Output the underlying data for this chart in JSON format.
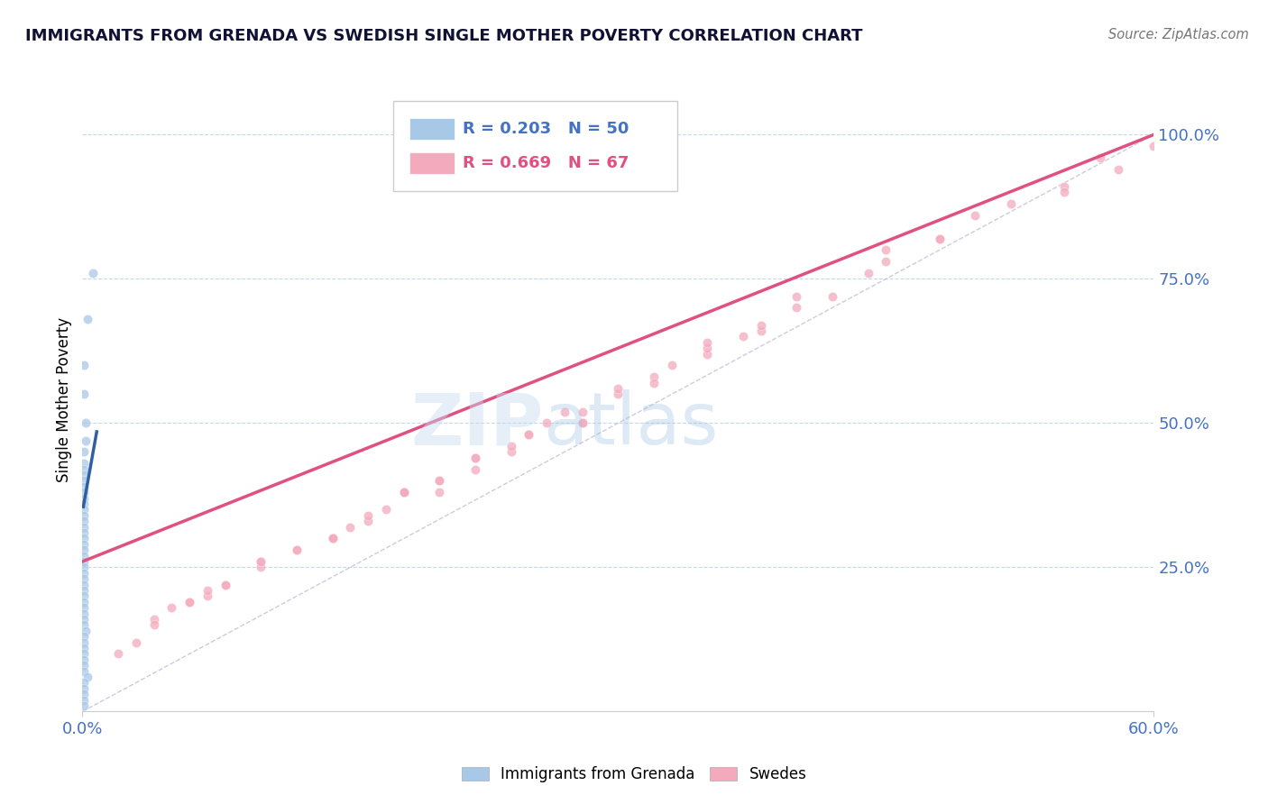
{
  "title": "IMMIGRANTS FROM GRENADA VS SWEDISH SINGLE MOTHER POVERTY CORRELATION CHART",
  "source_text": "Source: ZipAtlas.com",
  "ylabel": "Single Mother Poverty",
  "xlim": [
    0.0,
    0.6
  ],
  "ylim": [
    0.0,
    1.05
  ],
  "xticks": [
    0.0,
    0.6
  ],
  "xticklabels": [
    "0.0%",
    "60.0%"
  ],
  "ytick_positions": [
    0.25,
    0.5,
    0.75,
    1.0
  ],
  "ytick_labels": [
    "25.0%",
    "50.0%",
    "75.0%",
    "100.0%"
  ],
  "blue_color": "#a8c8e8",
  "pink_color": "#f4aabd",
  "blue_line_color": "#3060a0",
  "pink_line_color": "#e05080",
  "legend_R1": "R = 0.203",
  "legend_N1": "N = 50",
  "legend_R2": "R = 0.669",
  "legend_N2": "N = 67",
  "legend_label1": "Immigrants from Grenada",
  "legend_label2": "Swedes",
  "watermark_zip": "ZIP",
  "watermark_atlas": "atlas",
  "blue_scatter_x": [
    0.003,
    0.006,
    0.001,
    0.001,
    0.002,
    0.002,
    0.001,
    0.001,
    0.001,
    0.001,
    0.001,
    0.001,
    0.001,
    0.001,
    0.001,
    0.001,
    0.001,
    0.001,
    0.001,
    0.001,
    0.001,
    0.001,
    0.001,
    0.001,
    0.001,
    0.001,
    0.001,
    0.001,
    0.001,
    0.001,
    0.001,
    0.001,
    0.001,
    0.001,
    0.001,
    0.001,
    0.002,
    0.001,
    0.001,
    0.001,
    0.001,
    0.001,
    0.001,
    0.001,
    0.003,
    0.001,
    0.001,
    0.001,
    0.001,
    0.001
  ],
  "blue_scatter_y": [
    0.68,
    0.76,
    0.6,
    0.55,
    0.5,
    0.47,
    0.45,
    0.43,
    0.42,
    0.41,
    0.4,
    0.39,
    0.38,
    0.37,
    0.36,
    0.35,
    0.34,
    0.33,
    0.32,
    0.31,
    0.3,
    0.29,
    0.28,
    0.27,
    0.26,
    0.25,
    0.24,
    0.23,
    0.22,
    0.21,
    0.2,
    0.19,
    0.18,
    0.17,
    0.16,
    0.15,
    0.14,
    0.13,
    0.12,
    0.11,
    0.1,
    0.09,
    0.08,
    0.07,
    0.06,
    0.05,
    0.04,
    0.03,
    0.02,
    0.01
  ],
  "pink_scatter_x": [
    0.3,
    0.2,
    0.25,
    0.18,
    0.15,
    0.22,
    0.28,
    0.35,
    0.12,
    0.1,
    0.08,
    0.05,
    0.07,
    0.14,
    0.17,
    0.06,
    0.24,
    0.32,
    0.28,
    0.2,
    0.16,
    0.3,
    0.26,
    0.22,
    0.18,
    0.14,
    0.1,
    0.08,
    0.06,
    0.04,
    0.35,
    0.4,
    0.45,
    0.38,
    0.32,
    0.28,
    0.24,
    0.2,
    0.16,
    0.12,
    0.42,
    0.48,
    0.52,
    0.55,
    0.58,
    0.6,
    0.38,
    0.33,
    0.27,
    0.22,
    0.18,
    0.14,
    0.1,
    0.07,
    0.04,
    0.5,
    0.44,
    0.37,
    0.03,
    0.02,
    0.55,
    0.48,
    0.4,
    0.57,
    0.45,
    0.35,
    0.25
  ],
  "pink_scatter_y": [
    0.55,
    0.4,
    0.48,
    0.38,
    0.32,
    0.42,
    0.52,
    0.62,
    0.28,
    0.25,
    0.22,
    0.18,
    0.2,
    0.3,
    0.35,
    0.19,
    0.45,
    0.58,
    0.5,
    0.38,
    0.33,
    0.56,
    0.5,
    0.44,
    0.38,
    0.3,
    0.26,
    0.22,
    0.19,
    0.16,
    0.63,
    0.7,
    0.78,
    0.66,
    0.57,
    0.5,
    0.46,
    0.4,
    0.34,
    0.28,
    0.72,
    0.82,
    0.88,
    0.91,
    0.94,
    0.98,
    0.67,
    0.6,
    0.52,
    0.44,
    0.38,
    0.3,
    0.26,
    0.21,
    0.15,
    0.86,
    0.76,
    0.65,
    0.12,
    0.1,
    0.9,
    0.82,
    0.72,
    0.96,
    0.8,
    0.64,
    0.48
  ],
  "blue_trend_x": [
    0.0005,
    0.008
  ],
  "blue_trend_y": [
    0.355,
    0.485
  ],
  "pink_trend_x": [
    0.0,
    0.6
  ],
  "pink_trend_y": [
    0.26,
    1.0
  ],
  "dashed_line_x": [
    0.0,
    0.6
  ],
  "dashed_line_y": [
    0.0,
    1.0
  ]
}
